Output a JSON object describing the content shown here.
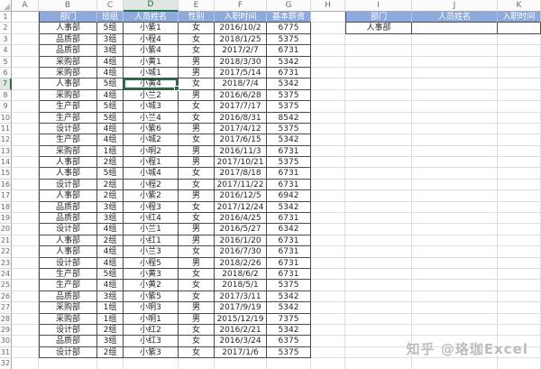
{
  "watermark": "知乎 @珞珈Excel",
  "column_letters": [
    "A",
    "B",
    "C",
    "D",
    "E",
    "F",
    "G",
    "H",
    "I",
    "J",
    "K"
  ],
  "selection": {
    "active_cell": "D7",
    "selected_column_letter": "D",
    "selected_row_number": "7",
    "active_cell_value": "小黄4"
  },
  "colors": {
    "table_header_fill": "#8EA9DB",
    "table_header_text": "#FFFFFF",
    "selection_green": "#217346",
    "gridline": "#DCDFE2",
    "table_border": "#4A4A4A"
  },
  "main_table": {
    "start_cell": "B1",
    "headers": [
      "部门",
      "班组",
      "人员姓名",
      "性别",
      "入职时间",
      "基本薪资"
    ],
    "rows": [
      [
        "人事部",
        "5组",
        "小紫1",
        "女",
        "2016/10/2",
        "6775"
      ],
      [
        "品质部",
        "3组",
        "小程4",
        "女",
        "2018/1/25",
        "5375"
      ],
      [
        "品质部",
        "3组",
        "小紫4",
        "女",
        "2017/2/7",
        "6731"
      ],
      [
        "采购部",
        "4组",
        "小黄1",
        "男",
        "2018/3/30",
        "5342"
      ],
      [
        "采购部",
        "4组",
        "小城1",
        "男",
        "2017/5/14",
        "6731"
      ],
      [
        "人事部",
        "5组",
        "小黄4",
        "女",
        "2018/7/4",
        "5342"
      ],
      [
        "采购部",
        "4组",
        "小兰2",
        "男",
        "2016/6/28",
        "5375"
      ],
      [
        "生产部",
        "5组",
        "小城3",
        "女",
        "2017/7/17",
        "5375"
      ],
      [
        "生产部",
        "5组",
        "小兰4",
        "女",
        "2016/8/31",
        "8542"
      ],
      [
        "设计部",
        "4组",
        "小紫6",
        "男",
        "2017/4/12",
        "5375"
      ],
      [
        "生产部",
        "4组",
        "小城2",
        "女",
        "2017/6/15",
        "5342"
      ],
      [
        "采购部",
        "1组",
        "小明2",
        "男",
        "2016/11/3",
        "6731"
      ],
      [
        "人事部",
        "2组",
        "小程1",
        "男",
        "2017/10/21",
        "5375"
      ],
      [
        "人事部",
        "5组",
        "小城4",
        "女",
        "2017/8/18",
        "6731"
      ],
      [
        "设计部",
        "2组",
        "小程2",
        "女",
        "2017/11/22",
        "6731"
      ],
      [
        "人事部",
        "2组",
        "小紫2",
        "男",
        "2016/12/5",
        "6942"
      ],
      [
        "品质部",
        "3组",
        "小程3",
        "女",
        "2017/12/24",
        "5342"
      ],
      [
        "品质部",
        "3组",
        "小红4",
        "女",
        "2016/4/25",
        "6731"
      ],
      [
        "设计部",
        "4组",
        "小兰1",
        "男",
        "2016/5/27",
        "6342"
      ],
      [
        "人事部",
        "2组",
        "小红1",
        "男",
        "2016/1/20",
        "6731"
      ],
      [
        "人事部",
        "4组",
        "小兰3",
        "女",
        "2016/7/30",
        "6731"
      ],
      [
        "设计部",
        "4组",
        "小程5",
        "男",
        "2018/2/26",
        "6731"
      ],
      [
        "生产部",
        "5组",
        "小黄3",
        "女",
        "2018/6/2",
        "6731"
      ],
      [
        "生产部",
        "4组",
        "小黄2",
        "女",
        "2018/5/1",
        "5375"
      ],
      [
        "品质部",
        "3组",
        "小紫5",
        "女",
        "2017/3/11",
        "5342"
      ],
      [
        "采购部",
        "1组",
        "小明3",
        "男",
        "2017/9/19",
        "5342"
      ],
      [
        "采购部",
        "1组",
        "小明1",
        "男",
        "2015/12/19",
        "7375"
      ],
      [
        "设计部",
        "2组",
        "小红2",
        "女",
        "2016/2/21",
        "5342"
      ],
      [
        "品质部",
        "3组",
        "小红3",
        "女",
        "2016/3/24",
        "6375"
      ],
      [
        "设计部",
        "2组",
        "小紫3",
        "女",
        "2017/1/6",
        "5375"
      ]
    ]
  },
  "lookup_table": {
    "start_cell": "I1",
    "headers": [
      "部门",
      "人员姓名",
      "入职时间"
    ],
    "rows": [
      [
        "人事部",
        "",
        ""
      ]
    ]
  }
}
